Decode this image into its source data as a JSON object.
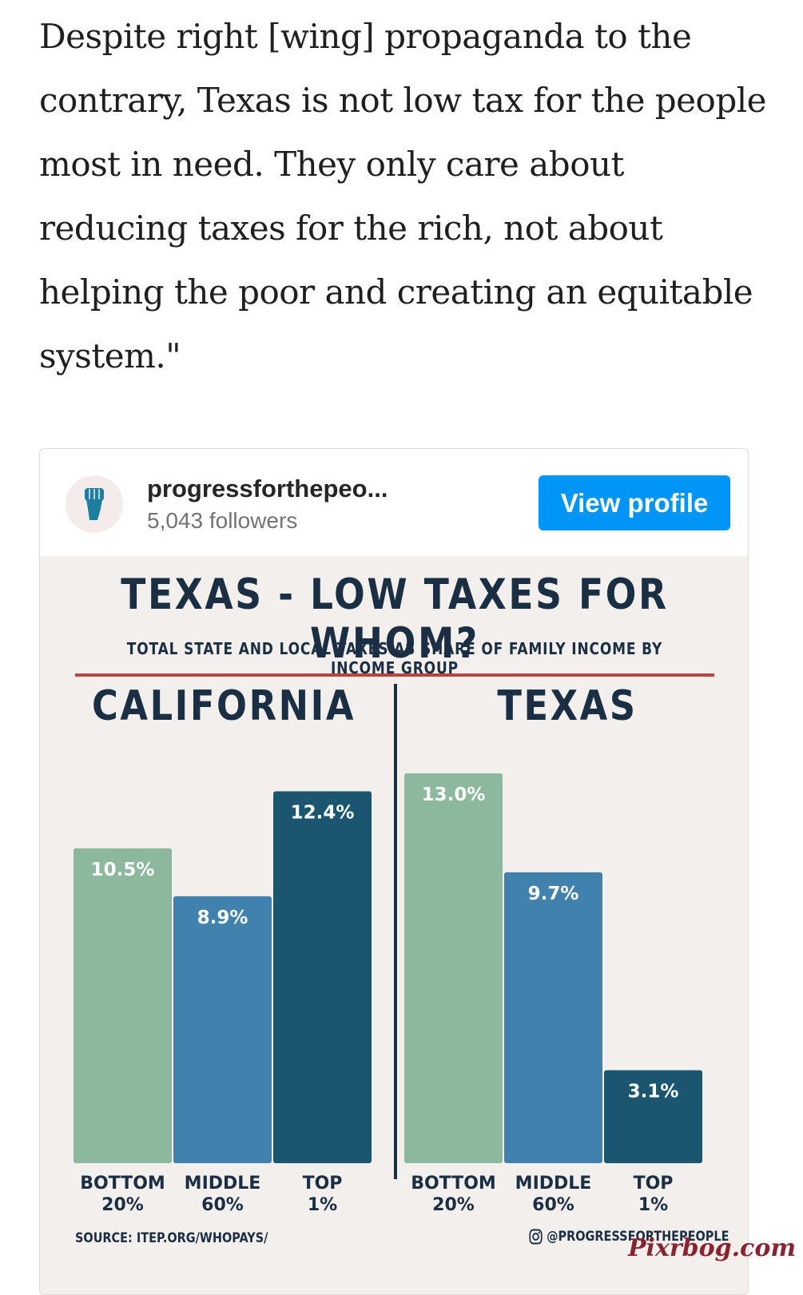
{
  "article": {
    "paragraph": "Despite right [wing] propaganda to the contrary, Texas is not low tax for the people most in need. They only care about reducing taxes for the rich, not about helping the poor and creating an equitable system.\""
  },
  "embed": {
    "profile_name": "progressforthepeo...",
    "followers": "5,043 followers",
    "view_profile_label": "View profile",
    "avatar_icon": "raised-fist-icon"
  },
  "infographic": {
    "title": "TEXAS - LOW TAXES FOR WHOM?",
    "subtitle": "TOTAL STATE AND LOCAL TAXES AS SHARE OF FAMILY INCOME BY INCOME GROUP",
    "source": "SOURCE: ITEP.ORG/WHOPAYS/",
    "handle": "@PROGRESSFORTHEPEOPLE",
    "handle_icon": "instagram-icon"
  },
  "chart_data": [
    {
      "type": "bar",
      "title": "CALIFORNIA",
      "categories": [
        "BOTTOM 20%",
        "MIDDLE 60%",
        "TOP 1%"
      ],
      "values": [
        10.5,
        8.9,
        12.4
      ],
      "labels": [
        "10.5%",
        "8.9%",
        "12.4%"
      ],
      "colors": [
        "#8cb89e",
        "#4181ae",
        "#1a5670"
      ],
      "ylim": [
        0,
        13
      ],
      "grid": false
    },
    {
      "type": "bar",
      "title": "TEXAS",
      "categories": [
        "BOTTOM 20%",
        "MIDDLE 60%",
        "TOP 1%"
      ],
      "values": [
        13.0,
        9.7,
        3.1
      ],
      "labels": [
        "13.0%",
        "9.7%",
        "3.1%"
      ],
      "colors": [
        "#8cb89e",
        "#4181ae",
        "#1a5670"
      ],
      "ylim": [
        0,
        13
      ],
      "grid": false
    }
  ],
  "watermark": "Pixrbog.com"
}
